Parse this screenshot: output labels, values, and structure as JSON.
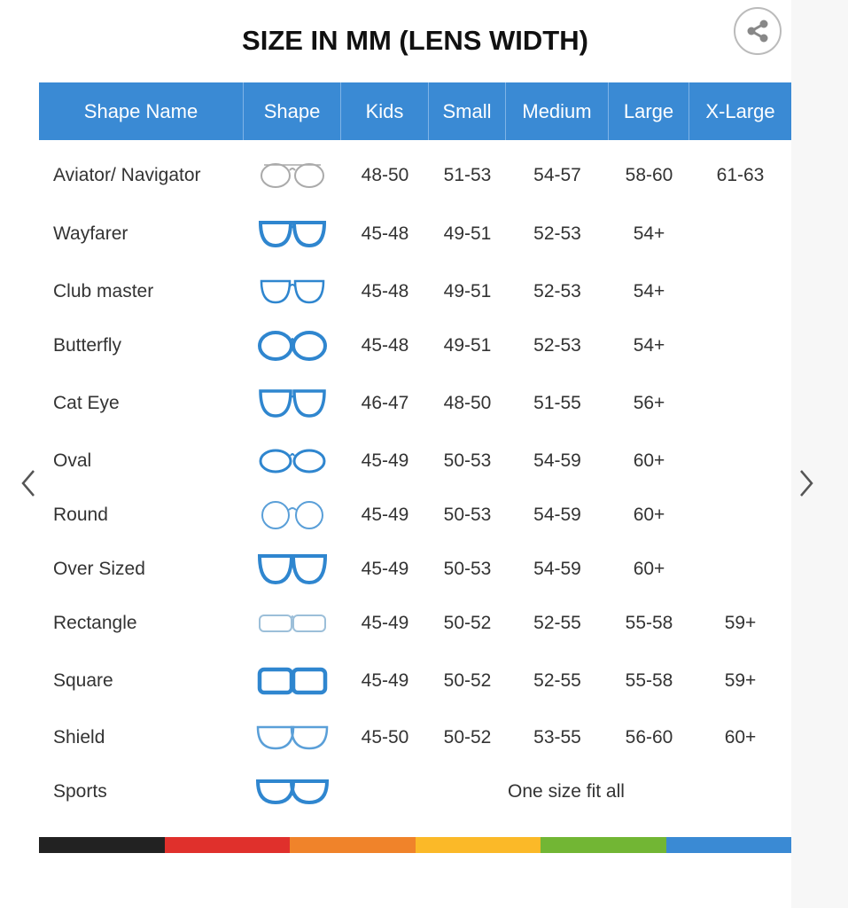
{
  "title": "SIZE IN MM (LENS WIDTH)",
  "share_icon": "share-icon",
  "columns": [
    "Shape Name",
    "Shape",
    "Kids",
    "Small",
    "Medium",
    "Large",
    "X-Large"
  ],
  "rows": [
    {
      "name": "Aviator/ Navigator",
      "icon": "aviator",
      "color": "#aaaaaa",
      "sizes": [
        "48-50",
        "51-53",
        "54-57",
        "58-60",
        "61-63"
      ]
    },
    {
      "name": "Wayfarer",
      "icon": "wayfarer",
      "color": "#2f86cf",
      "sizes": [
        "45-48",
        "49-51",
        "52-53",
        "54+",
        ""
      ]
    },
    {
      "name": "Club master",
      "icon": "clubmaster",
      "color": "#2f86cf",
      "sizes": [
        "45-48",
        "49-51",
        "52-53",
        "54+",
        ""
      ]
    },
    {
      "name": "Butterfly",
      "icon": "butterfly",
      "color": "#2f86cf",
      "sizes": [
        "45-48",
        "49-51",
        "52-53",
        "54+",
        ""
      ]
    },
    {
      "name": "Cat Eye",
      "icon": "cateye",
      "color": "#2f86cf",
      "sizes": [
        "46-47",
        "48-50",
        "51-55",
        "56+",
        ""
      ]
    },
    {
      "name": "Oval",
      "icon": "oval",
      "color": "#2f86cf",
      "sizes": [
        "45-49",
        "50-53",
        "54-59",
        "60+",
        ""
      ]
    },
    {
      "name": "Round",
      "icon": "round",
      "color": "#5a9fd8",
      "sizes": [
        "45-49",
        "50-53",
        "54-59",
        "60+",
        ""
      ]
    },
    {
      "name": "Over Sized",
      "icon": "oversized",
      "color": "#2f86cf",
      "sizes": [
        "45-49",
        "50-53",
        "54-59",
        "60+",
        ""
      ]
    },
    {
      "name": "Rectangle",
      "icon": "rectangle",
      "color": "#9cbfd9",
      "sizes": [
        "45-49",
        "50-52",
        "52-55",
        "55-58",
        "59+"
      ]
    },
    {
      "name": "Square",
      "icon": "square",
      "color": "#2f86cf",
      "sizes": [
        "45-49",
        "50-52",
        "52-55",
        "55-58",
        "59+"
      ]
    },
    {
      "name": "Shield",
      "icon": "shield",
      "color": "#5a9fd8",
      "sizes": [
        "45-50",
        "50-52",
        "53-55",
        "56-60",
        "60+"
      ]
    },
    {
      "name": "Sports",
      "icon": "sports",
      "color": "#2f86cf",
      "all": "One size fit all"
    }
  ],
  "stripe_colors": [
    "#222222",
    "#e0302c",
    "#f0832a",
    "#fbb928",
    "#72b634",
    "#3a8ad4"
  ],
  "nav": {
    "prev_icon": "chevron-left-icon",
    "next_icon": "chevron-right-icon"
  }
}
